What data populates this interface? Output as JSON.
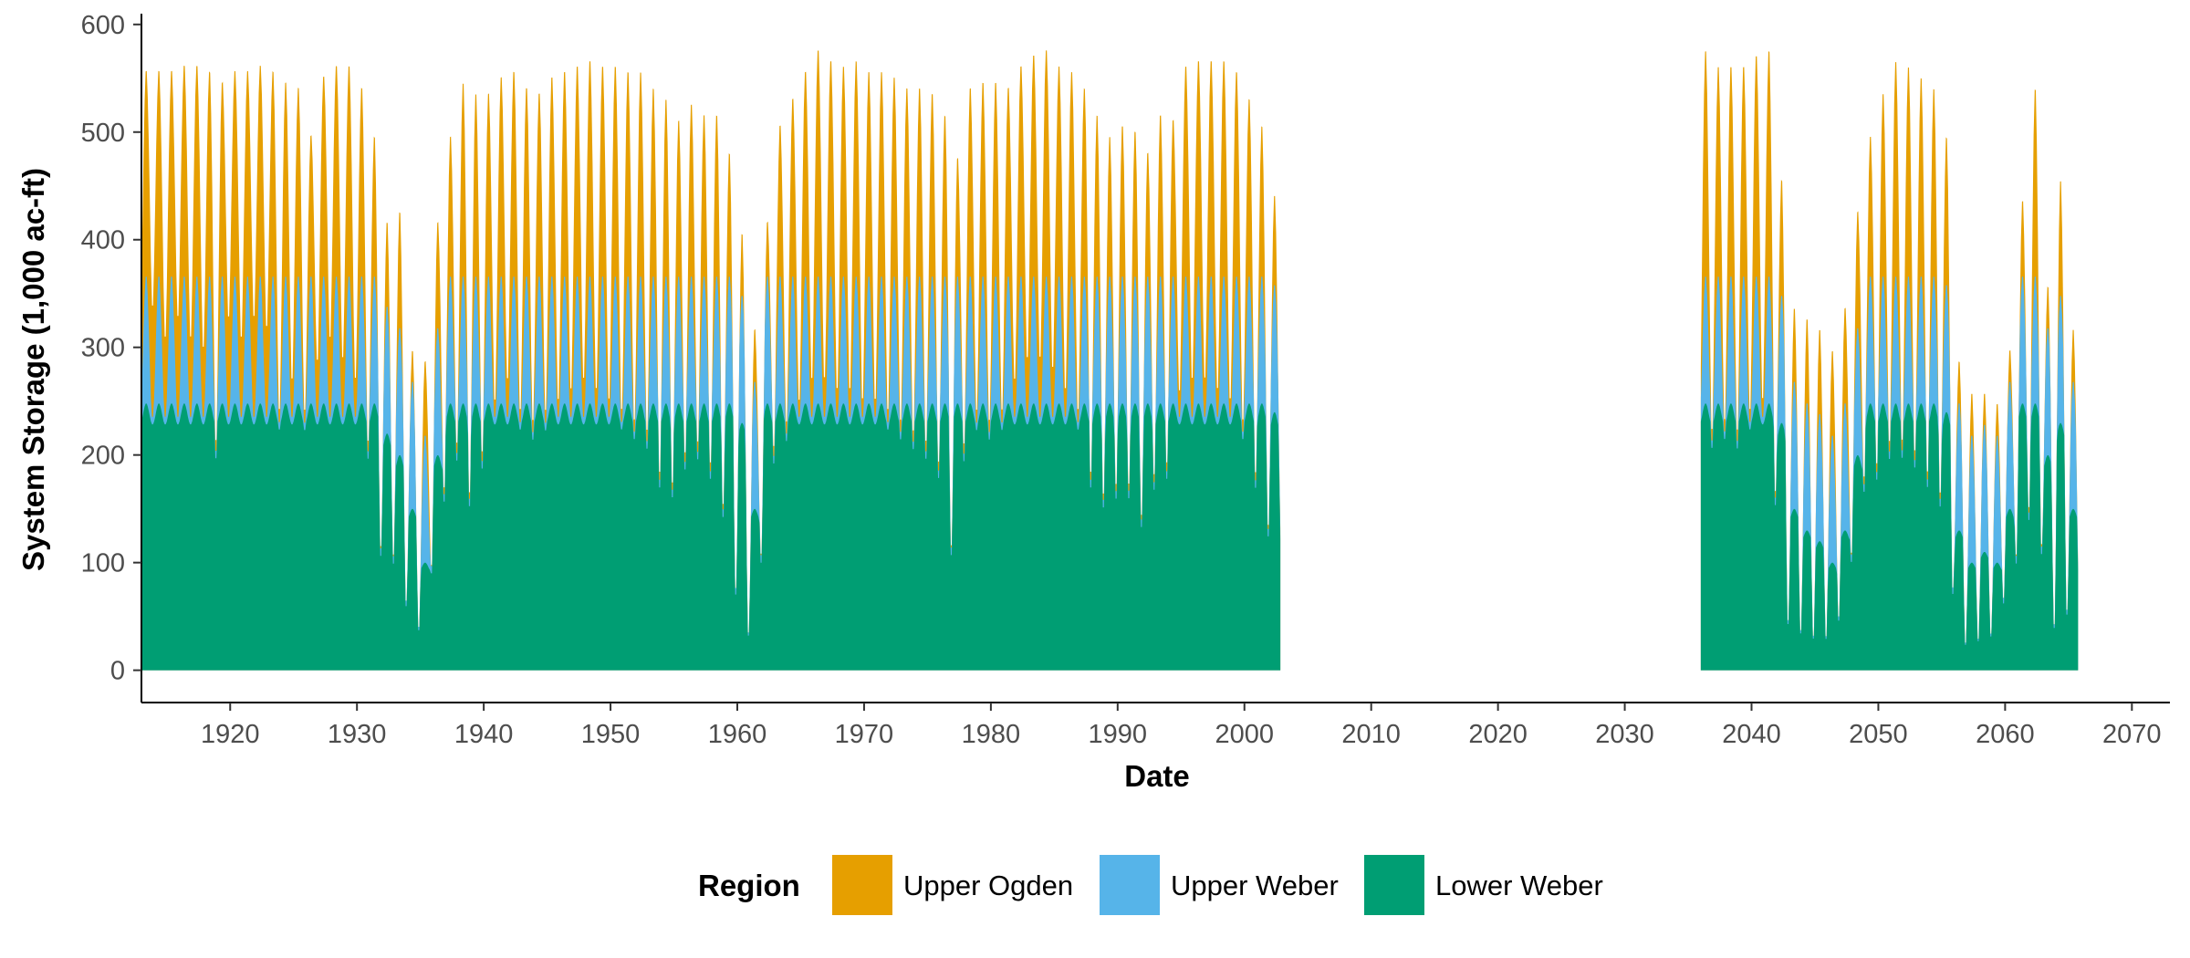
{
  "chart_data": {
    "type": "area",
    "stacked": true,
    "title": "",
    "xlabel": "Date",
    "ylabel": "System Storage (1,000 ac-ft)",
    "xlim": [
      1913,
      2073
    ],
    "ylim": [
      -30,
      610
    ],
    "x_ticks": [
      1920,
      1930,
      1940,
      1950,
      1960,
      1970,
      1980,
      1990,
      2000,
      2010,
      2020,
      2030,
      2040,
      2050,
      2060,
      2070
    ],
    "x_tick_labels": [
      "1920",
      "1930",
      "1940",
      "1950",
      "1960",
      "1970",
      "1980",
      "1990",
      "2000",
      "2010",
      "2020",
      "2030",
      "2040",
      "2050",
      "2060",
      "2070"
    ],
    "y_ticks": [
      0,
      100,
      200,
      300,
      400,
      500,
      600
    ],
    "y_tick_labels": [
      "0",
      "100",
      "200",
      "300",
      "400",
      "500",
      "600"
    ],
    "grid": false,
    "legend": {
      "title": "Region",
      "position": "bottom",
      "entries": [
        "Upper Ogden",
        "Upper Weber",
        "Lower Weber"
      ]
    },
    "colors": {
      "Upper Ogden": "#E69F00",
      "Upper Weber": "#56B4E9",
      "Lower Weber": "#009E73"
    },
    "data_note_points": "Monthly series; one point per year shown as [year, annual peak total, annual low total, lower weber peak]",
    "periods": [
      {
        "start": 1913,
        "end": 2002.9,
        "annual": [
          [
            1913,
            560,
            300,
            248
          ],
          [
            1914,
            560,
            330,
            248
          ],
          [
            1915,
            560,
            300,
            248
          ],
          [
            1916,
            565,
            320,
            248
          ],
          [
            1917,
            565,
            300,
            248
          ],
          [
            1918,
            560,
            290,
            248
          ],
          [
            1919,
            550,
            200,
            248
          ],
          [
            1920,
            560,
            320,
            248
          ],
          [
            1921,
            560,
            300,
            248
          ],
          [
            1922,
            565,
            320,
            248
          ],
          [
            1923,
            560,
            310,
            248
          ],
          [
            1924,
            550,
            230,
            248
          ],
          [
            1925,
            545,
            260,
            248
          ],
          [
            1926,
            500,
            230,
            248
          ],
          [
            1927,
            555,
            280,
            248
          ],
          [
            1928,
            565,
            300,
            248
          ],
          [
            1929,
            565,
            280,
            248
          ],
          [
            1930,
            545,
            260,
            248
          ],
          [
            1931,
            500,
            200,
            248
          ],
          [
            1932,
            420,
            100,
            220
          ],
          [
            1933,
            430,
            95,
            200
          ],
          [
            1934,
            300,
            50,
            150
          ],
          [
            1935,
            290,
            30,
            100
          ],
          [
            1936,
            420,
            90,
            200
          ],
          [
            1937,
            500,
            160,
            248
          ],
          [
            1938,
            550,
            200,
            248
          ],
          [
            1939,
            540,
            150,
            248
          ],
          [
            1940,
            540,
            190,
            248
          ],
          [
            1941,
            555,
            240,
            248
          ],
          [
            1942,
            560,
            260,
            248
          ],
          [
            1943,
            545,
            230,
            248
          ],
          [
            1944,
            540,
            220,
            248
          ],
          [
            1945,
            555,
            230,
            248
          ],
          [
            1946,
            560,
            240,
            248
          ],
          [
            1947,
            565,
            250,
            248
          ],
          [
            1948,
            570,
            260,
            248
          ],
          [
            1949,
            565,
            250,
            248
          ],
          [
            1950,
            565,
            240,
            248
          ],
          [
            1951,
            560,
            230,
            248
          ],
          [
            1952,
            560,
            220,
            248
          ],
          [
            1953,
            545,
            210,
            248
          ],
          [
            1954,
            535,
            170,
            248
          ],
          [
            1955,
            515,
            160,
            248
          ],
          [
            1956,
            530,
            190,
            248
          ],
          [
            1957,
            520,
            200,
            248
          ],
          [
            1958,
            520,
            180,
            248
          ],
          [
            1959,
            485,
            140,
            248
          ],
          [
            1960,
            410,
            60,
            230
          ],
          [
            1961,
            320,
            20,
            150
          ],
          [
            1962,
            420,
            100,
            248
          ],
          [
            1963,
            510,
            200,
            248
          ],
          [
            1964,
            535,
            220,
            248
          ],
          [
            1965,
            560,
            240,
            248
          ],
          [
            1966,
            580,
            260,
            248
          ],
          [
            1967,
            570,
            260,
            248
          ],
          [
            1968,
            565,
            250,
            248
          ],
          [
            1969,
            570,
            250,
            248
          ],
          [
            1970,
            560,
            240,
            248
          ],
          [
            1971,
            560,
            240,
            248
          ],
          [
            1972,
            555,
            230,
            248
          ],
          [
            1973,
            545,
            220,
            248
          ],
          [
            1974,
            545,
            210,
            248
          ],
          [
            1975,
            540,
            200,
            248
          ],
          [
            1976,
            520,
            180,
            248
          ],
          [
            1977,
            480,
            100,
            248
          ],
          [
            1978,
            545,
            200,
            248
          ],
          [
            1979,
            550,
            230,
            248
          ],
          [
            1980,
            550,
            220,
            248
          ],
          [
            1981,
            545,
            230,
            248
          ],
          [
            1982,
            565,
            260,
            248
          ],
          [
            1983,
            575,
            280,
            248
          ],
          [
            1984,
            580,
            280,
            248
          ],
          [
            1985,
            565,
            270,
            248
          ],
          [
            1986,
            560,
            250,
            248
          ],
          [
            1987,
            545,
            230,
            248
          ],
          [
            1988,
            520,
            170,
            248
          ],
          [
            1989,
            500,
            150,
            248
          ],
          [
            1990,
            510,
            160,
            248
          ],
          [
            1991,
            505,
            160,
            248
          ],
          [
            1992,
            485,
            130,
            248
          ],
          [
            1993,
            520,
            170,
            248
          ],
          [
            1994,
            515,
            180,
            248
          ],
          [
            1995,
            565,
            250,
            248
          ],
          [
            1996,
            570,
            260,
            248
          ],
          [
            1997,
            570,
            260,
            248
          ],
          [
            1998,
            570,
            250,
            248
          ],
          [
            1999,
            560,
            240,
            248
          ],
          [
            2000,
            535,
            220,
            248
          ],
          [
            2001,
            510,
            170,
            248
          ],
          [
            2002,
            445,
            120,
            240
          ]
        ]
      },
      {
        "start": 2036,
        "end": 2065.8,
        "annual": [
          [
            2036,
            580,
            200,
            248
          ],
          [
            2037,
            565,
            210,
            248
          ],
          [
            2038,
            565,
            220,
            248
          ],
          [
            2039,
            565,
            210,
            248
          ],
          [
            2040,
            575,
            230,
            248
          ],
          [
            2041,
            580,
            240,
            248
          ],
          [
            2042,
            460,
            150,
            230
          ],
          [
            2043,
            340,
            30,
            150
          ],
          [
            2044,
            330,
            25,
            130
          ],
          [
            2045,
            320,
            20,
            120
          ],
          [
            2046,
            300,
            20,
            100
          ],
          [
            2047,
            340,
            40,
            130
          ],
          [
            2048,
            430,
            100,
            200
          ],
          [
            2049,
            500,
            170,
            248
          ],
          [
            2050,
            540,
            180,
            248
          ],
          [
            2051,
            570,
            200,
            248
          ],
          [
            2052,
            565,
            200,
            248
          ],
          [
            2053,
            555,
            190,
            248
          ],
          [
            2054,
            545,
            170,
            248
          ],
          [
            2055,
            500,
            150,
            240
          ],
          [
            2056,
            290,
            60,
            130
          ],
          [
            2057,
            260,
            15,
            100
          ],
          [
            2058,
            260,
            20,
            110
          ],
          [
            2059,
            250,
            25,
            100
          ],
          [
            2060,
            300,
            60,
            150
          ],
          [
            2061,
            440,
            100,
            248
          ],
          [
            2062,
            545,
            140,
            248
          ],
          [
            2063,
            360,
            100,
            200
          ],
          [
            2064,
            460,
            30,
            230
          ],
          [
            2065,
            320,
            40,
            150
          ]
        ]
      }
    ]
  }
}
